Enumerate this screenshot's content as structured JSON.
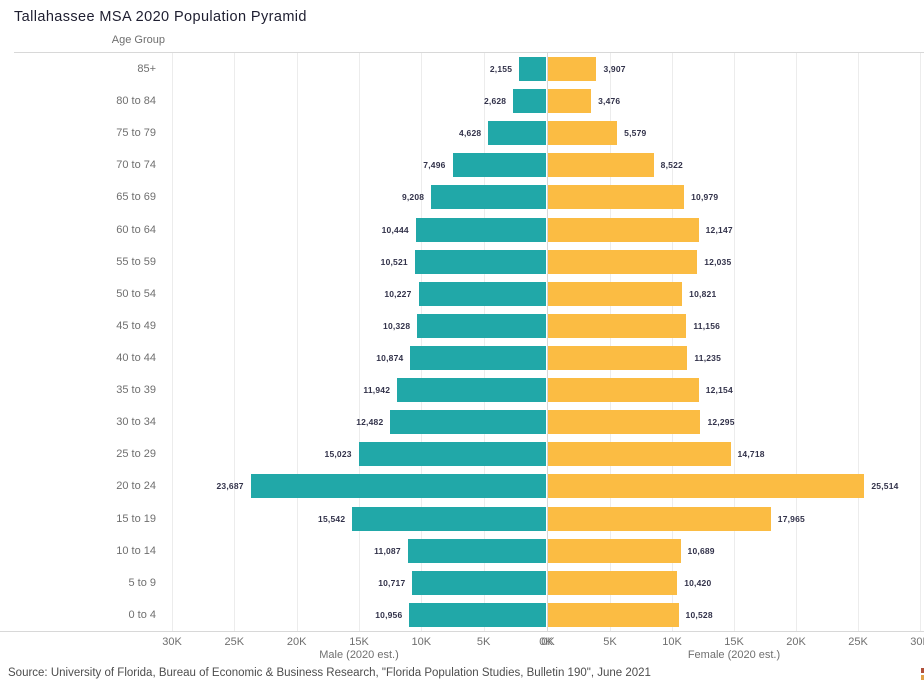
{
  "title": "Tallahassee MSA 2020 Population Pyramid",
  "axis": {
    "y_title": "Age Group",
    "male_title": "Male (2020 est.)",
    "female_title": "Female (2020 est.)",
    "tick_values": [
      0,
      5000,
      10000,
      15000,
      20000,
      25000,
      30000
    ],
    "tick_unit": "K",
    "max": 30000
  },
  "colors": {
    "male_bar": "#21a8a8",
    "female_bar": "#fbbc43",
    "gridline": "#ececec",
    "axis_text": "#6f6f6f",
    "data_label": "#32324a"
  },
  "source": "Source: University of Florida, Bureau of Economic & Business Research, \"Florida Population Studies, Bulletin 190\", June 2021",
  "chart_data": {
    "type": "bar",
    "variant": "diverging-population-pyramid",
    "title": "Tallahassee MSA 2020 Population Pyramid",
    "ylabel": "Age Group",
    "xlim_male": [
      30000,
      0
    ],
    "xlim_female": [
      0,
      30000
    ],
    "grid": true,
    "legend_position": "none",
    "categories": [
      "85+",
      "80 to 84",
      "75 to 79",
      "70 to 74",
      "65 to 69",
      "60 to 64",
      "55 to 59",
      "50 to 54",
      "45 to 49",
      "40 to 44",
      "35 to 39",
      "30 to 34",
      "25 to 29",
      "20 to 24",
      "15 to 19",
      "10 to 14",
      "5 to 9",
      "0 to 4"
    ],
    "series": [
      {
        "name": "Male (2020 est.)",
        "values": [
          2155,
          2628,
          4628,
          7496,
          9208,
          10444,
          10521,
          10227,
          10328,
          10874,
          11942,
          12482,
          15023,
          23687,
          15542,
          11087,
          10717,
          10956
        ]
      },
      {
        "name": "Female (2020 est.)",
        "values": [
          3907,
          3476,
          5579,
          8522,
          10979,
          12147,
          12035,
          10821,
          11156,
          11235,
          12154,
          12295,
          14718,
          25514,
          17965,
          10689,
          10420,
          10528
        ]
      }
    ]
  }
}
